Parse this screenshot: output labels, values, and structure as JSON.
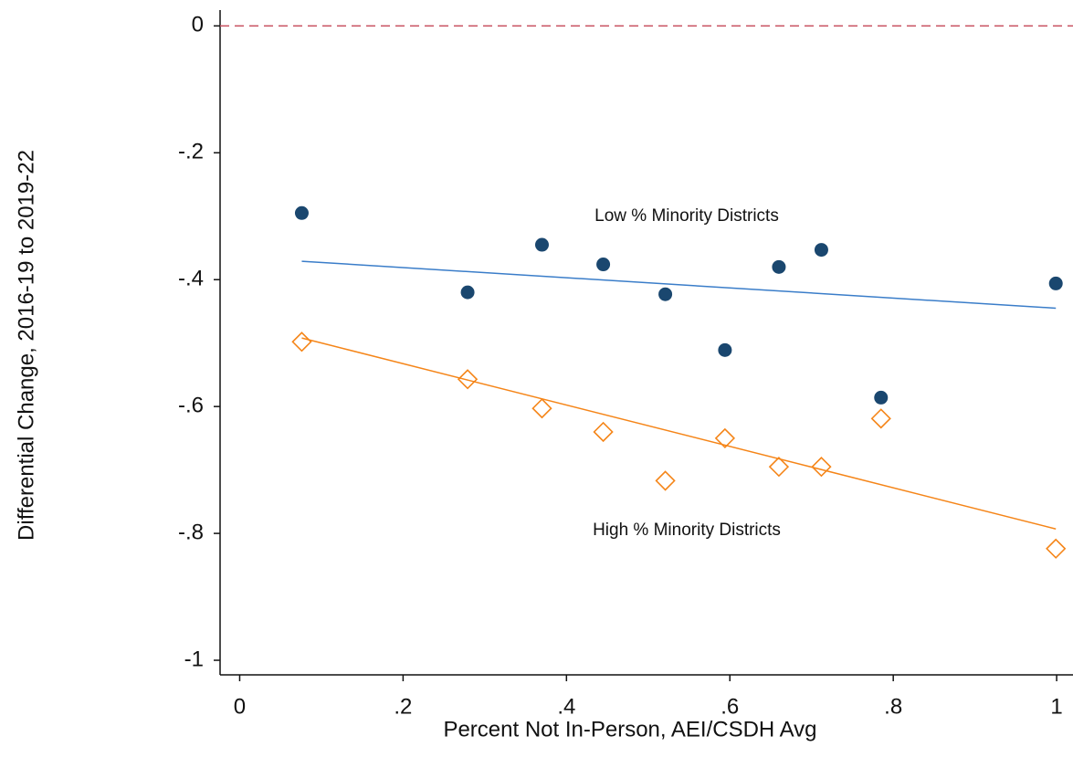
{
  "chart_data": {
    "type": "scatter",
    "x_label": "Percent Not In-Person, AEI/CSDH Avg",
    "y_label": "Differential Change, 2016-19 to 2019-22",
    "xlim": [
      -0.024,
      1.02
    ],
    "ylim": [
      -1.023,
      0.025
    ],
    "xticks": [
      0,
      {
        "value": 0.2,
        "label": ".2"
      },
      {
        "value": 0.4,
        "label": ".4"
      },
      {
        "value": 0.6,
        "label": ".6"
      },
      {
        "value": 0.8,
        "label": ".8"
      },
      1
    ],
    "yticks": [
      0,
      {
        "value": -0.2,
        "label": "-.2"
      },
      {
        "value": -0.4,
        "label": "-.4"
      },
      {
        "value": -0.6,
        "label": "-.6"
      },
      {
        "value": -0.8,
        "label": "-.8"
      },
      -1
    ],
    "reference_line": {
      "y": 0,
      "color": "#c8505f"
    },
    "series": [
      {
        "name": "Low % Minority Districts",
        "color": "#1a476f",
        "marker": "circle",
        "x": [
          0.076,
          0.279,
          0.37,
          0.445,
          0.521,
          0.594,
          0.66,
          0.712,
          0.785,
          0.999
        ],
        "values": [
          -0.295,
          -0.42,
          -0.345,
          -0.376,
          -0.423,
          -0.511,
          -0.38,
          -0.353,
          -0.586,
          -0.406
        ],
        "fit": {
          "color": "#3a7dc9",
          "x": [
            0.076,
            0.999
          ],
          "values": [
            -0.371,
            -0.445
          ]
        }
      },
      {
        "name": "High % Minority Districts",
        "color": "#f58518",
        "marker": "diamond",
        "x": [
          0.076,
          0.279,
          0.37,
          0.445,
          0.521,
          0.594,
          0.66,
          0.712,
          0.785,
          0.999
        ],
        "values": [
          -0.498,
          -0.557,
          -0.603,
          -0.64,
          -0.717,
          -0.65,
          -0.695,
          -0.695,
          -0.619,
          -0.824
        ],
        "fit": {
          "color": "#f58518",
          "x": [
            0.076,
            0.999
          ],
          "values": [
            -0.492,
            -0.793
          ]
        }
      }
    ]
  }
}
